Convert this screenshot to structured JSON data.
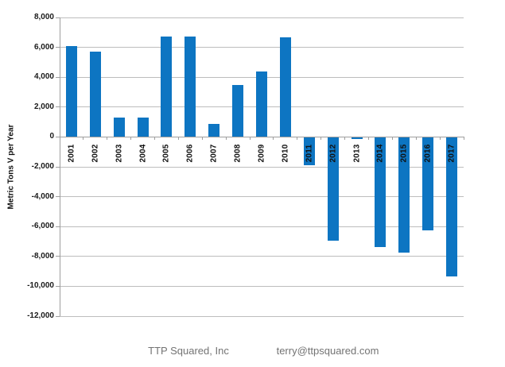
{
  "chart_data": {
    "type": "bar",
    "title": "",
    "xlabel": "",
    "ylabel": "Metric Tons V per Year",
    "categories": [
      "2001",
      "2002",
      "2003",
      "2004",
      "2005",
      "2006",
      "2007",
      "2008",
      "2009",
      "2010",
      "2011",
      "2012",
      "2013",
      "2014",
      "2015",
      "2016",
      "2017"
    ],
    "values": [
      6100,
      5700,
      1300,
      1300,
      6750,
      6750,
      850,
      3500,
      4400,
      6650,
      -1850,
      -6900,
      -100,
      -7300,
      -7700,
      -6200,
      -9300
    ],
    "series": [
      {
        "name": "Metric Tons V per Year",
        "values": [
          6100,
          5700,
          1300,
          1300,
          6750,
          6750,
          850,
          3500,
          4400,
          6650,
          -1850,
          -6900,
          -100,
          -7300,
          -7700,
          -6200,
          -9300
        ]
      }
    ],
    "ylim": [
      -12000,
      8000
    ],
    "ytick_step": 2000,
    "ytick_labels": [
      "8,000",
      "6,000",
      "4,000",
      "2,000",
      "0",
      "-2,000",
      "-4,000",
      "-6,000",
      "-8,000",
      "-10,000",
      "-12,000"
    ],
    "grid": true,
    "legend": false,
    "bar_color": "#0d75c2"
  },
  "colors": {
    "bar": "#0d75c2",
    "gridline": "#bdbdbd",
    "axis": "#9e9e9e",
    "tick_text": "#1a1a1a",
    "footer_text": "#737373"
  },
  "footer": {
    "company": "TTP Squared, Inc",
    "email": "terry@ttpsquared.com"
  }
}
